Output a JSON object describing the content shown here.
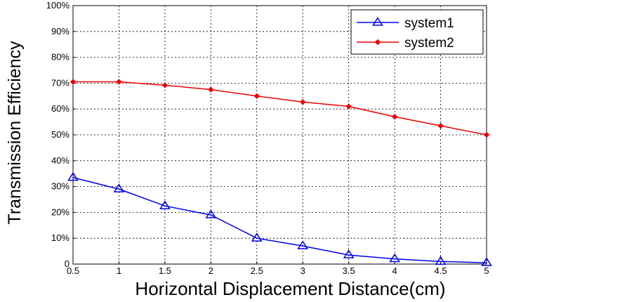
{
  "chart_data": {
    "type": "line",
    "xlabel": "Horizontal Displacement Distance(cm)",
    "ylabel": "Transmission Efficiency",
    "xlim": [
      0.5,
      5
    ],
    "ylim": [
      0,
      100
    ],
    "x": [
      0.5,
      1,
      1.5,
      2,
      2.5,
      3,
      3.5,
      4,
      4.5,
      5
    ],
    "xticks": [
      "0.5",
      "1",
      "1.5",
      "2",
      "2.5",
      "3",
      "3.5",
      "4",
      "4.5",
      "5"
    ],
    "yticks": [
      "0",
      "10%",
      "20%",
      "30%",
      "40%",
      "50%",
      "60%",
      "70%",
      "80%",
      "90%",
      "100%"
    ],
    "grid": "dashed",
    "legend_position": "top-right",
    "series": [
      {
        "name": "system1",
        "color": "#0000ee",
        "marker": "triangle",
        "values": [
          33.5,
          29,
          22.5,
          19,
          10,
          7,
          3.5,
          2,
          1,
          0.5
        ]
      },
      {
        "name": "system2",
        "color": "#ee0000",
        "marker": "diamond",
        "values": [
          70.5,
          70.5,
          69.2,
          67.5,
          65,
          62.7,
          61,
          57,
          53.5,
          50
        ]
      }
    ]
  }
}
